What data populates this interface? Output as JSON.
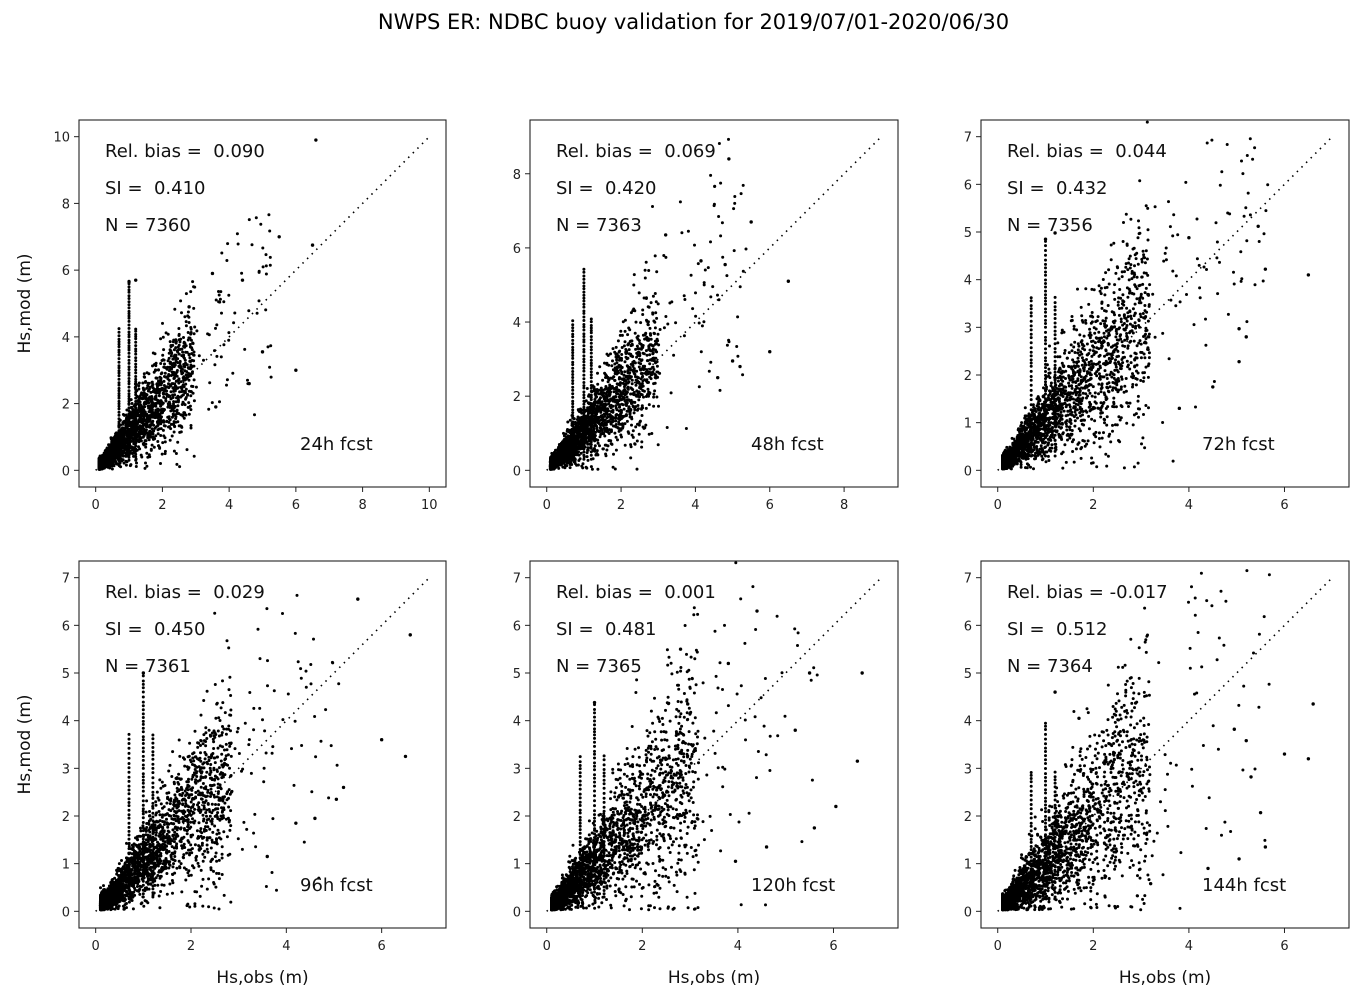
{
  "figure": {
    "title": "NWPS ER: NDBC buoy validation for 2019/07/01-2020/06/30"
  },
  "chart_data": [
    {
      "type": "scatter",
      "panel": "24h fcst",
      "title": "",
      "xlabel": "",
      "ylabel": "Hs,mod (m)",
      "xlim": [
        -0.5,
        10.5
      ],
      "ylim": [
        -0.5,
        10.5
      ],
      "xticks": [
        "0",
        "2",
        "4",
        "6",
        "8",
        "10"
      ],
      "yticks": [
        "0",
        "2",
        "4",
        "6",
        "8",
        "10"
      ],
      "xtick_values": [
        0,
        2,
        4,
        6,
        8,
        10
      ],
      "ytick_values": [
        0,
        2,
        4,
        6,
        8,
        10
      ],
      "stats": {
        "rel_bias": "Rel. bias =  0.090",
        "si": "SI =  0.410",
        "n": "N = 7360"
      },
      "label": "24h fcst",
      "n": 7360,
      "rel_bias": 0.09,
      "si": 0.41,
      "identity_line_max": 10,
      "outliers": [
        [
          6.6,
          9.9
        ],
        [
          5.5,
          7.0
        ],
        [
          6.5,
          6.75
        ],
        [
          3.5,
          5.9
        ],
        [
          4.4,
          5.7
        ],
        [
          1.2,
          5.7
        ],
        [
          1.0,
          5.65
        ],
        [
          2.8,
          4.9
        ],
        [
          6.0,
          3.0
        ],
        [
          5.0,
          3.55
        ],
        [
          4.6,
          2.6
        ],
        [
          3.6,
          1.9
        ]
      ],
      "spikes_x": [
        0.7,
        1.0,
        1.2
      ],
      "spike_top": 5.7,
      "cloud_xmax": 5.2
    },
    {
      "type": "scatter",
      "panel": "48h fcst",
      "title": "",
      "xlabel": "",
      "ylabel": "",
      "xlim": [
        -0.45,
        9.45
      ],
      "ylim": [
        -0.45,
        9.45
      ],
      "xticks": [
        "0",
        "2",
        "4",
        "6",
        "8"
      ],
      "yticks": [
        "0",
        "2",
        "4",
        "6",
        "8"
      ],
      "xtick_values": [
        0,
        2,
        4,
        6,
        8
      ],
      "ytick_values": [
        0,
        2,
        4,
        6,
        8
      ],
      "stats": {
        "rel_bias": "Rel. bias =  0.069",
        "si": "SI =  0.420",
        "n": "N = 7363"
      },
      "label": "48h fcst",
      "n": 7363,
      "rel_bias": 0.069,
      "si": 0.42,
      "identity_line_max": 9,
      "outliers": [
        [
          4.9,
          8.4
        ],
        [
          5.5,
          6.7
        ],
        [
          3.2,
          6.35
        ],
        [
          4.15,
          5.65
        ],
        [
          4.8,
          5.55
        ],
        [
          6.5,
          5.1
        ],
        [
          6.0,
          3.2
        ],
        [
          5.2,
          2.8
        ],
        [
          5.0,
          2.95
        ],
        [
          4.6,
          2.5
        ]
      ],
      "spikes_x": [
        0.7,
        1.0,
        1.2
      ],
      "spike_top": 5.45,
      "cloud_xmax": 5.3
    },
    {
      "type": "scatter",
      "panel": "72h fcst",
      "title": "",
      "xlabel": "",
      "ylabel": "",
      "xlim": [
        -0.35,
        7.35
      ],
      "ylim": [
        -0.35,
        7.35
      ],
      "xticks": [
        "0",
        "2",
        "4",
        "6"
      ],
      "yticks": [
        "0",
        "1",
        "2",
        "3",
        "4",
        "5",
        "6",
        "7"
      ],
      "xtick_values": [
        0,
        2,
        4,
        6
      ],
      "ytick_values": [
        0,
        1,
        2,
        3,
        4,
        5,
        6,
        7
      ],
      "stats": {
        "rel_bias": "Rel. bias =  0.044",
        "si": "SI =  0.432",
        "n": "N = 7356"
      },
      "label": "72h fcst",
      "n": 7356,
      "rel_bias": 0.044,
      "si": 0.432,
      "identity_line_max": 7,
      "outliers": [
        [
          1.0,
          4.85
        ],
        [
          1.2,
          4.98
        ],
        [
          5.45,
          5.12
        ],
        [
          4.0,
          4.88
        ],
        [
          6.5,
          4.1
        ],
        [
          5.6,
          4.22
        ],
        [
          5.05,
          2.97
        ],
        [
          5.2,
          2.8
        ],
        [
          5.05,
          2.28
        ],
        [
          4.5,
          1.75
        ],
        [
          3.8,
          1.3
        ]
      ],
      "spikes_x": [
        0.7,
        1.0,
        1.2
      ],
      "spike_top": 4.85,
      "cloud_xmax": 5.6
    },
    {
      "type": "scatter",
      "panel": "96h fcst",
      "title": "",
      "xlabel": "Hs,obs (m)",
      "ylabel": "Hs,mod (m)",
      "xlim": [
        -0.35,
        7.35
      ],
      "ylim": [
        -0.35,
        7.35
      ],
      "xticks": [
        "0",
        "2",
        "4",
        "6"
      ],
      "yticks": [
        "0",
        "1",
        "2",
        "3",
        "4",
        "5",
        "6",
        "7"
      ],
      "xtick_values": [
        0,
        2,
        4,
        6
      ],
      "ytick_values": [
        0,
        1,
        2,
        3,
        4,
        5,
        6,
        7
      ],
      "stats": {
        "rel_bias": "Rel. bias =  0.029",
        "si": "SI =  0.450",
        "n": "N = 7361"
      },
      "label": "96h fcst",
      "n": 7361,
      "rel_bias": 0.029,
      "si": 0.45,
      "identity_line_max": 7,
      "outliers": [
        [
          5.5,
          6.55
        ],
        [
          6.6,
          5.8
        ],
        [
          1.0,
          5.0
        ],
        [
          6.0,
          3.6
        ],
        [
          6.5,
          3.25
        ],
        [
          5.2,
          2.6
        ],
        [
          5.05,
          2.35
        ],
        [
          4.6,
          1.95
        ],
        [
          4.2,
          1.85
        ],
        [
          3.6,
          1.15
        ]
      ],
      "spikes_x": [
        0.7,
        1.0,
        1.2
      ],
      "spike_top": 4.95,
      "cloud_xmax": 5.0
    },
    {
      "type": "scatter",
      "panel": "120h fcst",
      "title": "",
      "xlabel": "Hs,obs (m)",
      "ylabel": "",
      "xlim": [
        -0.35,
        7.35
      ],
      "ylim": [
        -0.35,
        7.35
      ],
      "xticks": [
        "0",
        "2",
        "4",
        "6"
      ],
      "yticks": [
        "0",
        "1",
        "2",
        "3",
        "4",
        "5",
        "6",
        "7"
      ],
      "xtick_values": [
        0,
        2,
        4,
        6
      ],
      "ytick_values": [
        0,
        1,
        2,
        3,
        4,
        5,
        6,
        7
      ],
      "stats": {
        "rel_bias": "Rel. bias =  0.001",
        "si": "SI =  0.481",
        "n": "N = 7365"
      },
      "label": "120h fcst",
      "n": 7365,
      "rel_bias": 0.001,
      "si": 0.481,
      "identity_line_max": 7,
      "outliers": [
        [
          4.4,
          6.3
        ],
        [
          2.8,
          5.5
        ],
        [
          3.8,
          5.2
        ],
        [
          5.5,
          5.0
        ],
        [
          6.6,
          5.0
        ],
        [
          2.95,
          4.35
        ],
        [
          1.0,
          4.38
        ],
        [
          5.2,
          3.8
        ],
        [
          6.5,
          3.15
        ],
        [
          6.05,
          2.2
        ],
        [
          5.6,
          1.75
        ],
        [
          4.6,
          1.35
        ],
        [
          3.95,
          1.05
        ]
      ],
      "spikes_x": [
        0.7,
        1.0,
        1.2
      ],
      "spike_top": 4.38,
      "cloud_xmax": 5.6
    },
    {
      "type": "scatter",
      "panel": "144h fcst",
      "title": "",
      "xlabel": "Hs,obs (m)",
      "ylabel": "",
      "xlim": [
        -0.35,
        7.35
      ],
      "ylim": [
        -0.35,
        7.35
      ],
      "xticks": [
        "0",
        "2",
        "4",
        "6"
      ],
      "yticks": [
        "0",
        "1",
        "2",
        "3",
        "4",
        "5",
        "6",
        "7"
      ],
      "xtick_values": [
        0,
        2,
        4,
        6
      ],
      "ytick_values": [
        0,
        1,
        2,
        3,
        4,
        5,
        6,
        7
      ],
      "stats": {
        "rel_bias": "Rel. bias = -0.017",
        "si": "SI =  0.512",
        "n": "N = 7364"
      },
      "label": "144h fcst",
      "n": 7364,
      "rel_bias": -0.017,
      "si": 0.512,
      "identity_line_max": 7,
      "outliers": [
        [
          1.2,
          4.6
        ],
        [
          6.6,
          4.35
        ],
        [
          1.7,
          4.05
        ],
        [
          4.95,
          3.82
        ],
        [
          5.2,
          3.58
        ],
        [
          6.0,
          3.3
        ],
        [
          6.5,
          3.2
        ],
        [
          5.3,
          2.82
        ],
        [
          5.5,
          2.07
        ],
        [
          5.6,
          1.35
        ],
        [
          5.05,
          1.1
        ],
        [
          4.4,
          0.9
        ],
        [
          3.2,
          0.58
        ]
      ],
      "spikes_x": [
        0.7,
        1.0,
        1.2
      ],
      "spike_top": 4.0,
      "cloud_xmax": 5.6
    }
  ]
}
